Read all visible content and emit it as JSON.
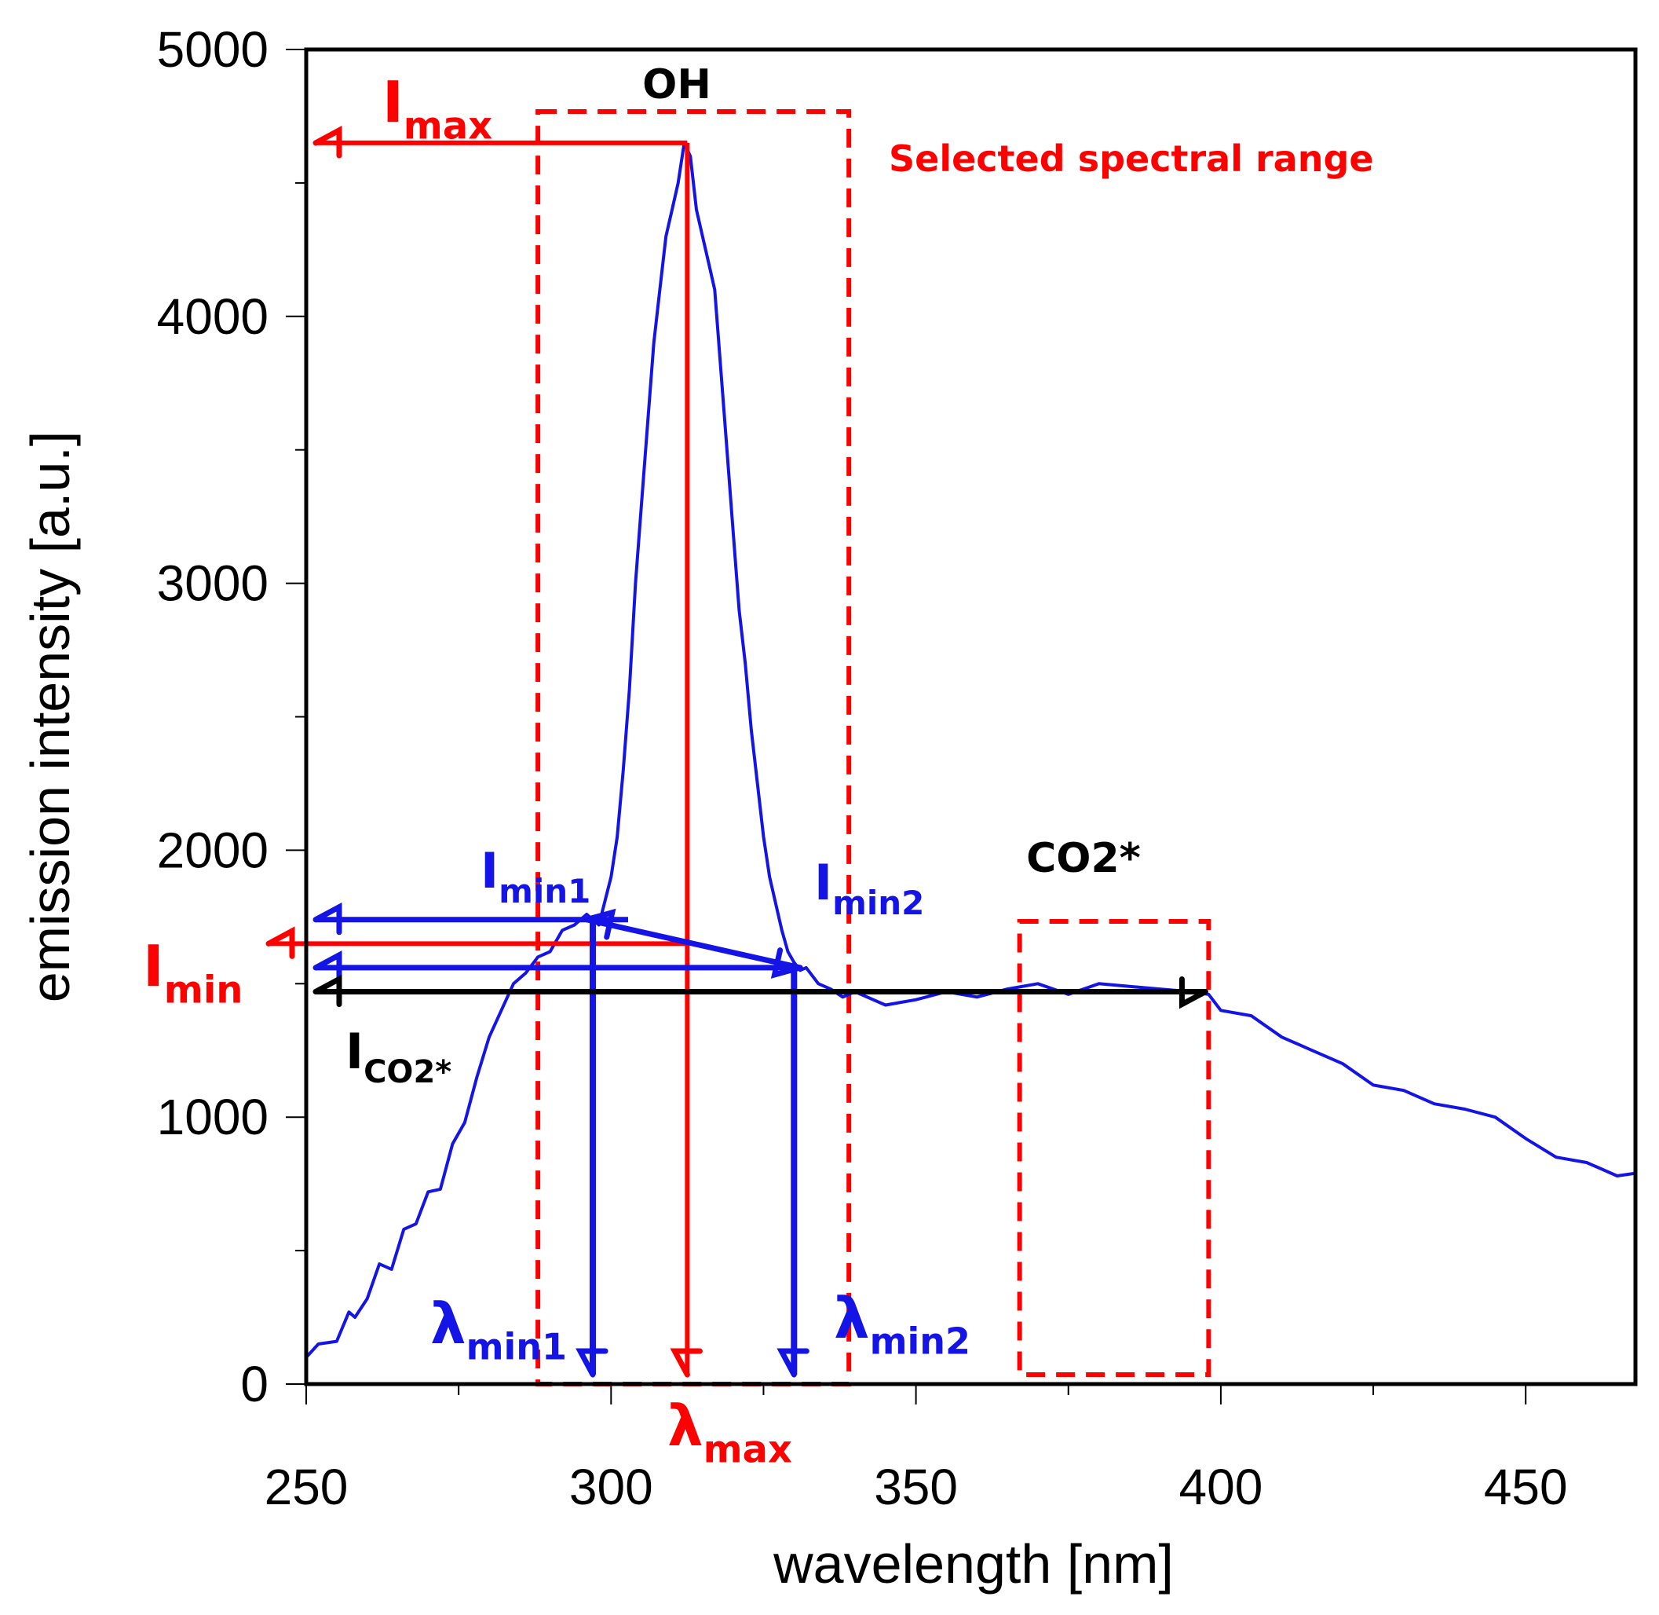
{
  "chart_data": {
    "type": "line",
    "xlabel": "wavelength [nm]",
    "ylabel": "emission intensity [a.u.]",
    "xlim": [
      250,
      468
    ],
    "ylim": [
      0,
      5000
    ],
    "x_ticks": [
      250,
      300,
      350,
      400,
      450
    ],
    "y_ticks": [
      0,
      1000,
      2000,
      3000,
      4000,
      5000
    ],
    "grid": false,
    "colors": {
      "spectrum": "#1414e6",
      "highlight": "#ff0000",
      "reference": "#000000"
    },
    "series": [
      {
        "x": [
          250,
          252,
          255,
          257,
          258,
          260,
          262,
          264,
          266,
          268,
          270,
          272,
          274,
          276,
          278,
          280,
          282,
          284,
          286,
          288,
          290,
          292,
          294,
          296,
          298,
          300,
          301,
          302,
          303,
          304,
          305,
          306,
          307,
          308,
          309,
          310,
          311,
          312,
          313,
          314,
          315,
          316,
          317,
          318,
          319,
          320,
          321,
          322,
          323,
          324,
          325,
          326,
          327,
          328,
          329,
          330,
          331,
          332,
          334,
          336,
          338,
          340,
          345,
          350,
          355,
          360,
          365,
          370,
          375,
          380,
          385,
          390,
          395,
          398,
          400,
          405,
          410,
          415,
          420,
          425,
          430,
          435,
          440,
          445,
          450,
          455,
          460,
          465,
          468
        ],
        "y": [
          100,
          150,
          160,
          270,
          250,
          320,
          450,
          430,
          580,
          600,
          720,
          730,
          900,
          980,
          1150,
          1300,
          1400,
          1500,
          1540,
          1600,
          1620,
          1700,
          1720,
          1760,
          1720,
          1900,
          2050,
          2300,
          2600,
          3000,
          3300,
          3600,
          3900,
          4100,
          4300,
          4400,
          4500,
          4650,
          4600,
          4400,
          4300,
          4200,
          4100,
          3800,
          3500,
          3200,
          2900,
          2700,
          2450,
          2250,
          2050,
          1900,
          1800,
          1700,
          1620,
          1580,
          1550,
          1560,
          1500,
          1480,
          1450,
          1470,
          1420,
          1440,
          1470,
          1450,
          1480,
          1500,
          1460,
          1500,
          1490,
          1480,
          1470,
          1460,
          1400,
          1380,
          1300,
          1250,
          1200,
          1120,
          1100,
          1050,
          1030,
          1000,
          920,
          850,
          830,
          780,
          790
        ]
      }
    ],
    "annotations": {
      "oh": "OH",
      "co2": "CO2*",
      "selected_range": "Selected spectral range",
      "imax": {
        "main": "I",
        "sub": "max"
      },
      "imin": {
        "main": "I",
        "sub": "min"
      },
      "imin1": {
        "main": "I",
        "sub": "min1"
      },
      "imin2": {
        "main": "I",
        "sub": "min2"
      },
      "ico2": {
        "main": "I",
        "sub": "CO2*"
      },
      "lmax": {
        "main": "λ",
        "sub": "max"
      },
      "lmin1": {
        "main": "λ",
        "sub": "min1"
      },
      "lmin2": {
        "main": "λ",
        "sub": "min2"
      }
    },
    "markers": {
      "lambda_max": 312.5,
      "lambda_min1": 297,
      "lambda_min2": 330,
      "I_max": 4650,
      "I_min": 1650,
      "I_min1": 1740,
      "I_min2": 1560,
      "I_co2": 1470,
      "selected_range_nm": [
        288,
        339
      ],
      "co2_range_nm": [
        367,
        398
      ]
    }
  }
}
